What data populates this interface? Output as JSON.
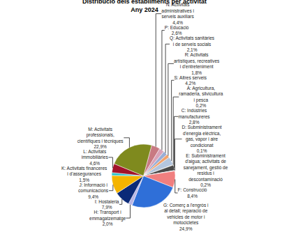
{
  "chart_data": {
    "type": "pie",
    "title": "Distribució dels establiments per activitat",
    "subtitle": "Any 2024",
    "data_labels": true,
    "categories": [
      "N: Activitats administratives i serveis auxiliars",
      "P: Educació",
      "Q: Activitats sanitàries i de serveis socials",
      "R: Activitats artístiques, recreatives i d'entreteniment",
      "S: Altres serveis",
      "A: Agricultura, ramaderia, silvicultura i pesca",
      "C: Indústries manufactureres",
      "D: Subministrament d'energia elèctrica, gas, vapor i aire condicionat",
      "E: Subministrament d'aigua; activitats de sanejament, gestió de residus i descontaminació",
      "F: Construcció",
      "G: Comerç a l'engròs i al detall; reparació de vehicles de motor i motocicletes",
      "H: Transport i emmagatzematge",
      "I: Hostaleria",
      "J: Informació i comunicacions",
      "K: Activitats financeres i d'assegurances",
      "L: Activitats immobiliàries",
      "M: Activitats professionals, científiques i tècniques"
    ],
    "values": [
      4.4,
      2.6,
      2.1,
      1.8,
      4.2,
      0.2,
      2.8,
      0.1,
      0.2,
      8.4,
      24.9,
      2.0,
      7.9,
      9.4,
      1.5,
      4.6,
      22.9
    ],
    "value_labels": [
      "4,4%",
      "2,6%",
      "2,1%",
      "1,8%",
      "4,2%",
      "0,2%",
      "2,8%",
      "0,1%",
      "0,2%",
      "8,4%",
      "24,9%",
      "2,0%",
      "7,9%",
      "9,4%",
      "1,5%",
      "4,6%",
      "22,9%"
    ],
    "colors": [
      "#c87a82",
      "#d9a3b8",
      "#9aaed6",
      "#f2a36c",
      "#b4c6de",
      "#f4efc2",
      "#4a4a4a",
      "#e8e8e8",
      "#7fa7c9",
      "#f07f7f",
      "#2f6fd8",
      "#b9b6e6",
      "#0b2a78",
      "#f4b400",
      "#33c4cc",
      "#a3122a",
      "#7f8a1e"
    ]
  }
}
